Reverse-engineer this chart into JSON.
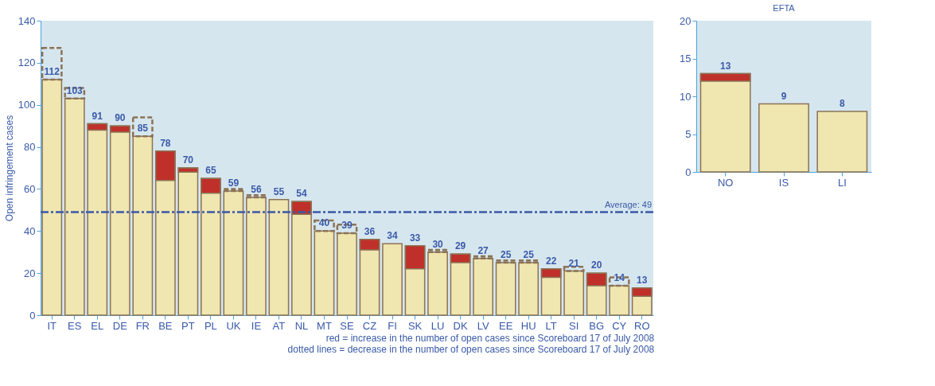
{
  "chart_data": [
    {
      "type": "bar",
      "ylabel": "Open infringement cases",
      "grid": false,
      "categories": [
        "IT",
        "ES",
        "EL",
        "DE",
        "FR",
        "BE",
        "PT",
        "PL",
        "UK",
        "IE",
        "AT",
        "NL",
        "MT",
        "SE",
        "CZ",
        "FI",
        "SK",
        "LU",
        "DK",
        "LV",
        "EE",
        "HU",
        "LT",
        "SI",
        "BG",
        "CY",
        "RO"
      ],
      "series": [
        {
          "color": "#f0e6b0",
          "values": [
            112,
            103,
            91,
            90,
            85,
            78,
            70,
            65,
            59,
            56,
            55,
            54,
            40,
            39,
            36,
            34,
            33,
            30,
            29,
            27,
            25,
            25,
            22,
            21,
            20,
            14,
            13
          ],
          "value_labels": [
            "112",
            "103",
            "91",
            "90",
            "85",
            "78",
            "70",
            "65",
            "59",
            "56",
            "55",
            "54",
            "40",
            "39",
            "36",
            "34",
            "33",
            "30",
            "29",
            "27",
            "25",
            "25",
            "22",
            "21",
            "20",
            "14",
            "13"
          ]
        },
        {
          "color": "#c0302a",
          "values": [
            null,
            null,
            3,
            3,
            null,
            14,
            2,
            7,
            null,
            null,
            null,
            6,
            null,
            null,
            5,
            null,
            11,
            null,
            4,
            null,
            null,
            null,
            4,
            null,
            6,
            null,
            4
          ],
          "base": [
            null,
            null,
            88,
            87,
            null,
            64,
            68,
            58,
            null,
            null,
            null,
            48,
            null,
            null,
            31,
            null,
            22,
            null,
            25,
            null,
            null,
            null,
            18,
            null,
            14,
            null,
            9
          ]
        },
        {
          "color": "#8b7355",
          "line_style": "dashed",
          "values": [
            15,
            5,
            null,
            null,
            9,
            null,
            null,
            null,
            1,
            1,
            null,
            null,
            5,
            4,
            null,
            null,
            null,
            1,
            null,
            1,
            1,
            1,
            null,
            2,
            null,
            4,
            null
          ],
          "base": [
            112,
            103,
            null,
            null,
            85,
            null,
            null,
            null,
            59,
            56,
            null,
            null,
            40,
            39,
            null,
            null,
            null,
            30,
            null,
            27,
            25,
            25,
            null,
            21,
            null,
            14,
            null
          ]
        }
      ],
      "ylim": [
        0,
        140
      ],
      "yticks": [
        0,
        20,
        40,
        60,
        80,
        100,
        120,
        140
      ],
      "ref_lines": [
        {
          "axis": "y",
          "value": 49,
          "label": "Average: 49",
          "color": "#3a5aa8",
          "line_style": "dashdot"
        }
      ],
      "annotations": [
        "red = increase in the number of open cases since Scoreboard 17 of July 2008",
        "dotted lines = decrease in the number of open cases since  Scoreboard 17  of July 2008"
      ]
    },
    {
      "type": "bar",
      "title": "EFTA",
      "grid": false,
      "categories": [
        "NO",
        "IS",
        "LI"
      ],
      "series": [
        {
          "color": "#f0e6b0",
          "values": [
            13,
            9,
            8
          ],
          "value_labels": [
            "13",
            "9",
            "8"
          ]
        },
        {
          "color": "#c0302a",
          "values": [
            1,
            null,
            null
          ],
          "base": [
            12,
            null,
            null
          ]
        }
      ],
      "ylim": [
        0,
        20
      ],
      "yticks": [
        0,
        5,
        10,
        15,
        20
      ]
    }
  ]
}
